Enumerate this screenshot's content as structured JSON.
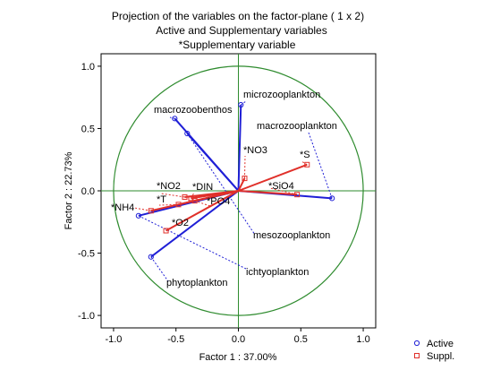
{
  "chart_data": {
    "type": "scatter",
    "title_lines": [
      "Projection of the variables on the factor-plane (  1 x   2)",
      "Active and Supplementary variables",
      "*Supplementary variable"
    ],
    "xlabel": "Factor 1 : 37.00%",
    "ylabel": "Factor 2 : 22.73%",
    "xlim": [
      -1.1,
      1.1
    ],
    "ylim": [
      -1.1,
      1.1
    ],
    "xticks": [
      "-1.0",
      "-0.5",
      "0.0",
      "0.5",
      "1.0"
    ],
    "yticks": [
      "1.0",
      "0.5",
      "0.0",
      "-0.5",
      "-1.0"
    ],
    "unit_circle": true,
    "series": [
      {
        "name": "Active",
        "marker": "circle",
        "color": "#1f1fd6",
        "points": [
          {
            "label": "macrozoobenthos",
            "x": -0.51,
            "y": 0.58
          },
          {
            "label": "microzooplankton",
            "x": 0.02,
            "y": 0.69
          },
          {
            "label": "macrozooplankton",
            "x": 0.75,
            "y": -0.06
          },
          {
            "label": "mesozooplankton",
            "x": -0.41,
            "y": 0.46
          },
          {
            "label": "ichtyoplankton",
            "x": -0.8,
            "y": -0.2
          },
          {
            "label": "phytoplankton",
            "x": -0.7,
            "y": -0.53
          }
        ]
      },
      {
        "name": "Suppl.",
        "marker": "square",
        "color": "#e0302a",
        "points": [
          {
            "label": "*NO3",
            "x": 0.05,
            "y": 0.1
          },
          {
            "label": "*S",
            "x": 0.55,
            "y": 0.21
          },
          {
            "label": "*SiO4",
            "x": 0.47,
            "y": -0.03
          },
          {
            "label": "*NO2",
            "x": -0.43,
            "y": -0.05
          },
          {
            "label": "*DIN",
            "x": -0.38,
            "y": -0.06
          },
          {
            "label": "*T",
            "x": -0.48,
            "y": -0.11
          },
          {
            "label": "*PO4",
            "x": -0.35,
            "y": -0.08
          },
          {
            "label": "*NH4",
            "x": -0.7,
            "y": -0.16
          },
          {
            "label": "*O2",
            "x": -0.58,
            "y": -0.32
          }
        ]
      }
    ],
    "legend": {
      "position": "bottom-right",
      "entries": [
        "Active",
        "Suppl."
      ]
    }
  }
}
